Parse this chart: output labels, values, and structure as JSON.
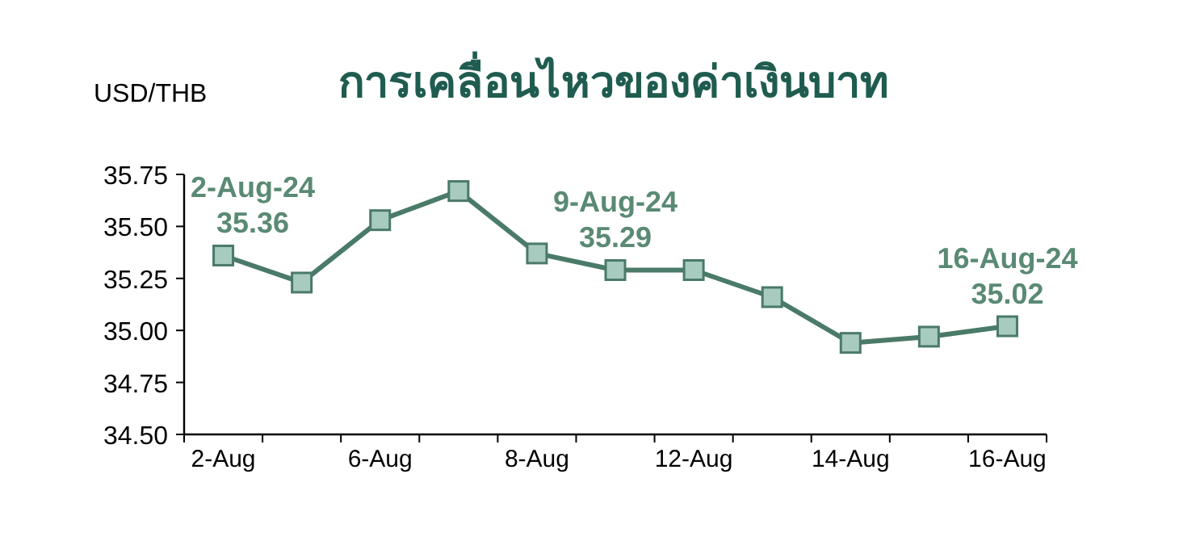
{
  "chart_data": {
    "type": "line",
    "title": "การเคลื่อนไหวของค่าเงินบาท",
    "ylabel": "USD/THB",
    "categories": [
      "2-Aug",
      null,
      "6-Aug",
      null,
      "8-Aug",
      null,
      "12-Aug",
      null,
      "14-Aug",
      null,
      "16-Aug"
    ],
    "series": [
      {
        "color": "#4a7a68",
        "values": [
          35.36,
          35.23,
          35.53,
          35.67,
          35.37,
          35.29,
          35.29,
          35.16,
          34.94,
          34.97,
          35.02
        ],
        "value_labels": [
          "2-Aug-24\n35.36",
          null,
          null,
          null,
          null,
          "9-Aug-24\n35.29",
          null,
          null,
          null,
          null,
          "16-Aug-24\n35.02"
        ]
      }
    ],
    "ylim": [
      34.5,
      35.75
    ],
    "yticks": [
      {
        "value": 34.5,
        "label": "34.50"
      },
      {
        "value": 34.75,
        "label": "34.75"
      },
      {
        "value": 35.0,
        "label": "35.00"
      },
      {
        "value": 35.25,
        "label": "35.25"
      },
      {
        "value": 35.5,
        "label": "35.50"
      },
      {
        "value": 35.75,
        "label": "35.75"
      }
    ],
    "marker": "square",
    "grid": false
  }
}
